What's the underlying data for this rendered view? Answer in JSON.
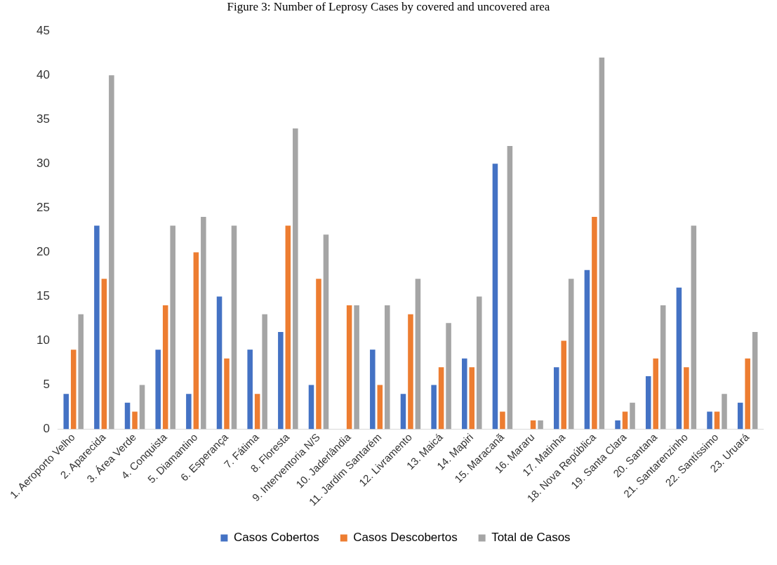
{
  "chart_data": {
    "type": "bar",
    "title": "Figure 3: Number of Leprosy Cases by covered and uncovered area",
    "categories": [
      "1. Aeroporto Velho",
      "2. Aparecida",
      "3. Área Verde",
      "4. Conquista",
      "5. Diamantino",
      "6. Esperança",
      "7. Fátima",
      "8. Floresta",
      "9. Interventoria N/S",
      "10. Jaderlândia",
      "11. Jardim Santarém",
      "12. Livramento",
      "13. Maicá",
      "14. Mapiri",
      "15. Maracanã",
      "16. Mararu",
      "17. Matinha",
      "18. Nova República",
      "19. Santa Clara",
      "20. Santana",
      "21. Santarenzinho",
      "22. Santíssimo",
      "23. Uruará"
    ],
    "series": [
      {
        "name": "Casos Cobertos",
        "color": "#4472c4",
        "values": [
          4,
          23,
          3,
          9,
          4,
          15,
          9,
          11,
          5,
          0,
          9,
          4,
          5,
          8,
          30,
          0,
          7,
          18,
          1,
          6,
          16,
          2,
          3
        ]
      },
      {
        "name": "Casos Descobertos",
        "color": "#ed7d31",
        "values": [
          9,
          17,
          2,
          14,
          20,
          8,
          4,
          23,
          17,
          14,
          5,
          13,
          7,
          7,
          2,
          1,
          10,
          24,
          2,
          8,
          7,
          2,
          8
        ]
      },
      {
        "name": "Total de Casos",
        "color": "#a5a5a5",
        "values": [
          13,
          40,
          5,
          23,
          24,
          23,
          13,
          34,
          22,
          14,
          14,
          17,
          12,
          15,
          32,
          1,
          17,
          42,
          3,
          14,
          23,
          4,
          11
        ]
      }
    ],
    "ylim": [
      0,
      45
    ],
    "yticks": [
      0,
      5,
      10,
      15,
      20,
      25,
      30,
      35,
      40,
      45
    ],
    "grid": false,
    "legend": "bottom"
  }
}
